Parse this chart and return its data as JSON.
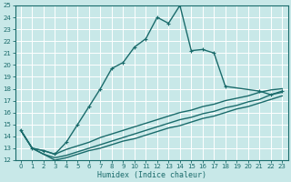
{
  "xlabel": "Humidex (Indice chaleur)",
  "bg_color": "#c8e8e8",
  "grid_color": "#b8d8d8",
  "line_color": "#1a6b6b",
  "xlim": [
    -0.5,
    23.5
  ],
  "ylim": [
    12,
    25
  ],
  "xticks": [
    0,
    1,
    2,
    3,
    4,
    5,
    6,
    7,
    8,
    9,
    10,
    11,
    12,
    13,
    14,
    15,
    16,
    17,
    18,
    19,
    20,
    21,
    22,
    23
  ],
  "yticks": [
    12,
    13,
    14,
    15,
    16,
    17,
    18,
    19,
    20,
    21,
    22,
    23,
    24,
    25
  ],
  "lines": [
    {
      "x": [
        0,
        1,
        2,
        3,
        4,
        5,
        6,
        7,
        8,
        9,
        10,
        11,
        12,
        13,
        14,
        15,
        16,
        17,
        18,
        21,
        22,
        23
      ],
      "y": [
        14.5,
        13.0,
        12.8,
        12.5,
        13.5,
        15.0,
        16.5,
        18.0,
        19.7,
        20.2,
        21.5,
        22.2,
        24.0,
        23.5,
        25.0,
        21.2,
        21.3,
        21.0,
        18.2,
        17.8,
        17.5,
        17.8
      ],
      "has_markers": true,
      "lw": 1.0
    },
    {
      "x": [
        0,
        1,
        2,
        3,
        4,
        5,
        6,
        7,
        8,
        9,
        10,
        11,
        12,
        13,
        14,
        15,
        16,
        17,
        18,
        19,
        20,
        21,
        22,
        23
      ],
      "y": [
        14.5,
        13.0,
        12.8,
        12.5,
        12.9,
        13.2,
        13.5,
        13.9,
        14.2,
        14.5,
        14.8,
        15.1,
        15.4,
        15.7,
        16.0,
        16.2,
        16.5,
        16.7,
        17.0,
        17.2,
        17.4,
        17.7,
        17.9,
        18.0
      ],
      "has_markers": false,
      "lw": 1.0
    },
    {
      "x": [
        0,
        1,
        2,
        3,
        4,
        5,
        6,
        7,
        8,
        9,
        10,
        11,
        12,
        13,
        14,
        15,
        16,
        17,
        18,
        19,
        20,
        21,
        22,
        23
      ],
      "y": [
        14.5,
        13.0,
        12.5,
        12.2,
        12.4,
        12.7,
        13.0,
        13.3,
        13.6,
        13.9,
        14.2,
        14.5,
        14.8,
        15.1,
        15.4,
        15.6,
        15.9,
        16.1,
        16.4,
        16.6,
        16.9,
        17.1,
        17.5,
        17.7
      ],
      "has_markers": false,
      "lw": 1.0
    },
    {
      "x": [
        0,
        1,
        2,
        3,
        4,
        5,
        6,
        7,
        8,
        9,
        10,
        11,
        12,
        13,
        14,
        15,
        16,
        17,
        18,
        19,
        20,
        21,
        22,
        23
      ],
      "y": [
        14.5,
        13.0,
        12.5,
        12.0,
        12.2,
        12.5,
        12.8,
        13.0,
        13.3,
        13.6,
        13.8,
        14.1,
        14.4,
        14.7,
        14.9,
        15.2,
        15.5,
        15.7,
        16.0,
        16.3,
        16.5,
        16.8,
        17.1,
        17.4
      ],
      "has_markers": false,
      "lw": 1.0
    }
  ]
}
